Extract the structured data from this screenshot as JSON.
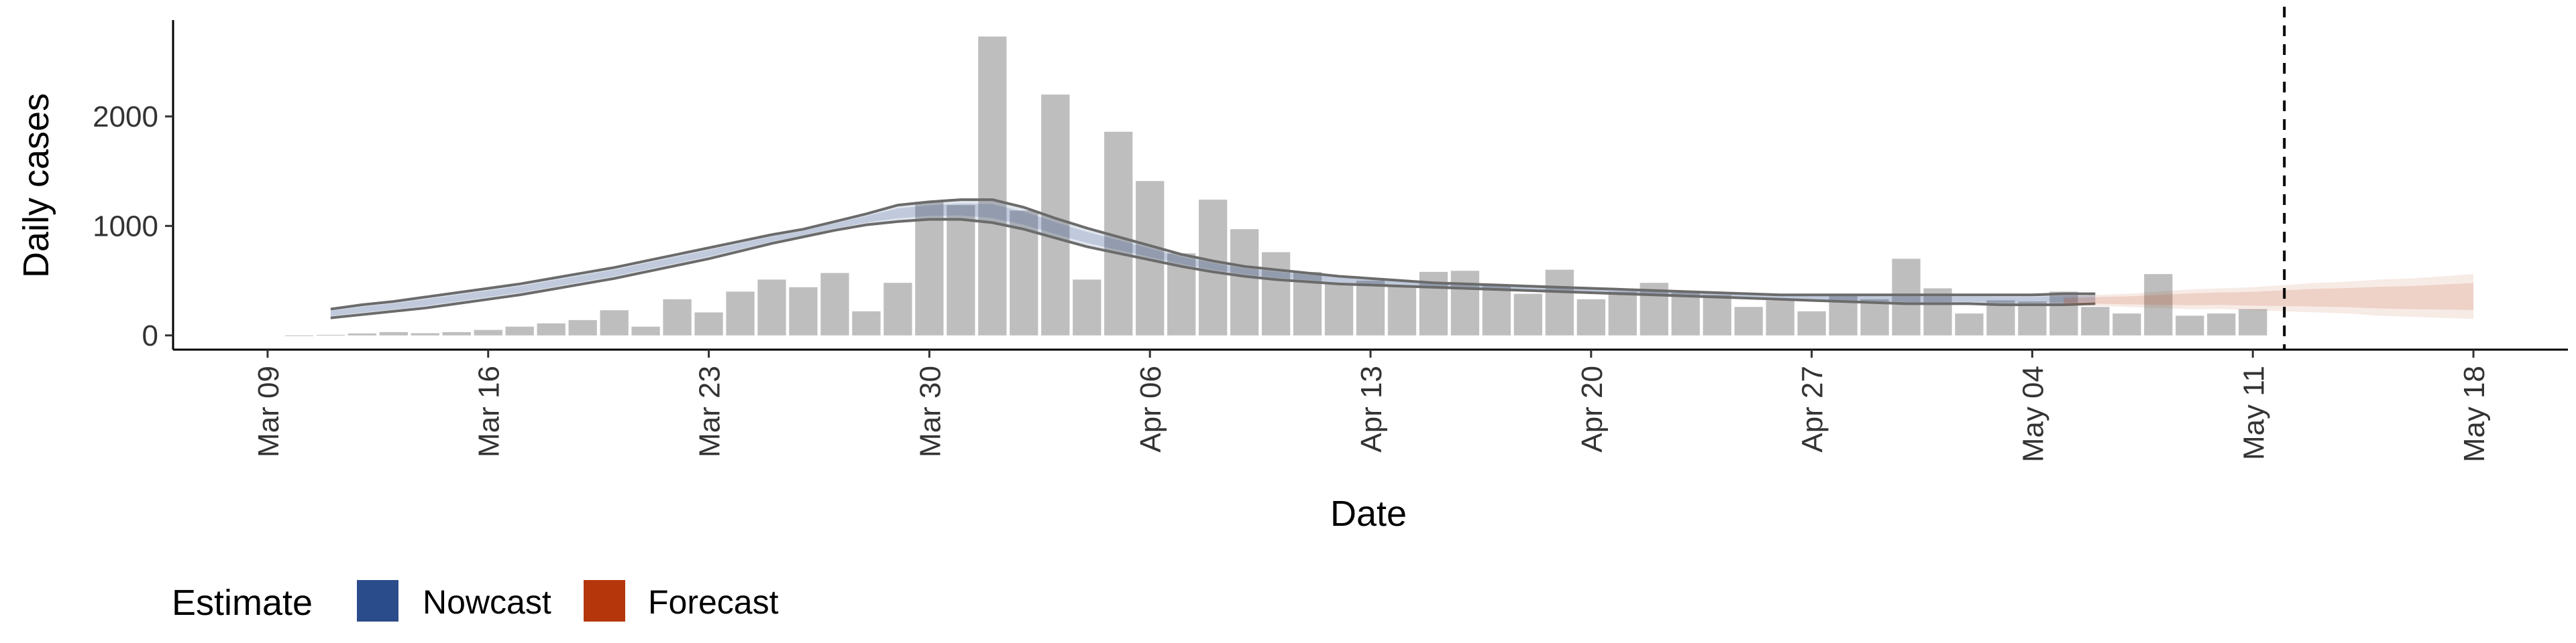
{
  "chart_data": {
    "type": "bar",
    "xlabel": "Date",
    "ylabel": "Daily cases",
    "x_tick_labels": [
      "Mar 09",
      "Mar 16",
      "Mar 23",
      "Mar 30",
      "Apr 06",
      "Apr 13",
      "Apr 20",
      "Apr 27",
      "May 04",
      "May 11",
      "May 18"
    ],
    "x_ticks": [
      "2020-03-09",
      "2020-03-16",
      "2020-03-23",
      "2020-03-30",
      "2020-04-06",
      "2020-04-13",
      "2020-04-20",
      "2020-04-27",
      "2020-05-04",
      "2020-05-11",
      "2020-05-18"
    ],
    "xlim": [
      "2020-03-06",
      "2020-05-21"
    ],
    "y_ticks": [
      0,
      1000,
      2000
    ],
    "y_tick_labels": [
      "0",
      "1000",
      "2000"
    ],
    "ylim": [
      -130,
      2880
    ],
    "grid": false,
    "reference_line_date": "2020-05-12",
    "bars": {
      "start_date": "2020-03-10",
      "values": [
        0,
        5,
        18,
        30,
        20,
        30,
        50,
        80,
        110,
        140,
        230,
        80,
        330,
        210,
        400,
        510,
        440,
        570,
        220,
        480,
        1220,
        1190,
        2730,
        1140,
        2200,
        510,
        1860,
        1410,
        750,
        1240,
        970,
        760,
        580,
        470,
        500,
        450,
        580,
        590,
        460,
        380,
        600,
        330,
        400,
        480,
        390,
        370,
        260,
        320,
        220,
        380,
        330,
        700,
        430,
        200,
        320,
        310,
        400,
        260,
        200,
        560,
        180,
        200,
        240
      ],
      "color": "#bebebe"
    },
    "series": [
      {
        "name": "Nowcast",
        "color": "#2b4c8a",
        "start_date": "2020-03-11",
        "lower": [
          160,
          190,
          220,
          250,
          290,
          330,
          370,
          420,
          470,
          520,
          580,
          640,
          700,
          770,
          840,
          900,
          960,
          1010,
          1040,
          1060,
          1060,
          1030,
          970,
          890,
          810,
          750,
          690,
          630,
          580,
          540,
          510,
          490,
          470,
          460,
          450,
          440,
          430,
          420,
          410,
          400,
          390,
          380,
          370,
          360,
          350,
          340,
          330,
          320,
          310,
          300,
          290,
          290,
          290,
          280,
          280,
          280,
          290
        ],
        "upper": [
          240,
          280,
          310,
          350,
          390,
          430,
          470,
          520,
          570,
          620,
          680,
          740,
          800,
          860,
          920,
          970,
          1040,
          1110,
          1190,
          1220,
          1240,
          1240,
          1170,
          1070,
          980,
          900,
          820,
          740,
          680,
          630,
          600,
          570,
          540,
          520,
          500,
          480,
          470,
          460,
          450,
          440,
          430,
          420,
          410,
          400,
          390,
          380,
          370,
          370,
          370,
          370,
          370,
          370,
          370,
          370,
          370,
          380,
          380
        ]
      },
      {
        "name": "Forecast",
        "color": "#b5360b",
        "start_date": "2020-05-05",
        "lower": [
          280,
          270,
          260,
          250,
          240,
          240,
          230,
          220,
          210,
          200,
          180,
          170,
          160,
          150
        ],
        "upper": [
          350,
          370,
          380,
          400,
          420,
          430,
          440,
          460,
          480,
          490,
          510,
          520,
          540,
          560
        ]
      }
    ],
    "legend": {
      "title": "Estimate",
      "placement": "bottom",
      "items": [
        {
          "label": "Nowcast",
          "color": "#2b4c8a"
        },
        {
          "label": "Forecast",
          "color": "#b5360b"
        }
      ]
    }
  }
}
